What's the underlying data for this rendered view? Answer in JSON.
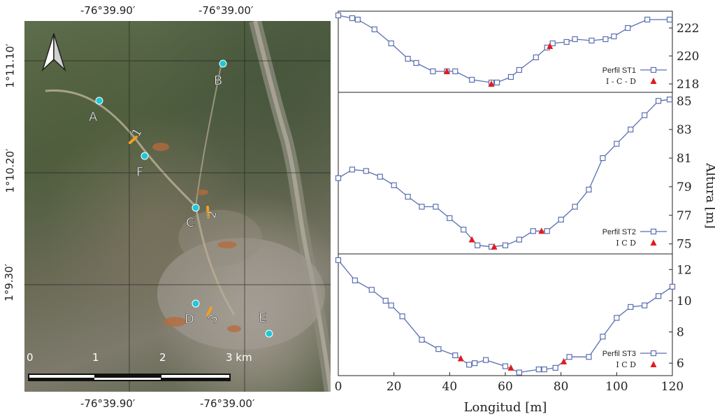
{
  "map": {
    "top_lon_labels": [
      "-76°39.90′",
      "-76°39.00′"
    ],
    "bottom_lon_labels": [
      "-76°39.90′",
      "-76°39.00′"
    ],
    "lat_labels": [
      "1°11.10′",
      "1°10.20′",
      "1°9.30′"
    ],
    "scale_labels": [
      "0",
      "1",
      "2",
      "3 km"
    ],
    "points": [
      "A",
      "B",
      "C",
      "D",
      "E",
      "F"
    ],
    "profiles": [
      "1",
      "2",
      "3"
    ],
    "colors": {
      "point": "#1ec8d8",
      "profile": "#f0a020"
    },
    "north_arrow_icon": "north-arrow-icon"
  },
  "chart_data": {
    "type": "line",
    "xlabel": "Longitud [m]",
    "ylabel": "Altura [m]",
    "x_ticks": [
      "0",
      "20",
      "40",
      "60",
      "80",
      "100",
      "120"
    ],
    "xlim": [
      0,
      120
    ],
    "colors": {
      "line": "#5a6fb0",
      "marker": "#e31a1c"
    },
    "panels": [
      {
        "ylim": [
          217.4,
          223.2
        ],
        "y_ticks": [
          "218",
          "220",
          "222"
        ],
        "legend": [
          "Perfil ST1",
          "I - C - D"
        ],
        "profile": [
          [
            0,
            222.9
          ],
          [
            5,
            222.7
          ],
          [
            7,
            222.6
          ],
          [
            13,
            221.9
          ],
          [
            19,
            220.9
          ],
          [
            25,
            219.8
          ],
          [
            28,
            219.5
          ],
          [
            34,
            218.9
          ],
          [
            39,
            218.9
          ],
          [
            42,
            218.9
          ],
          [
            48,
            218.3
          ],
          [
            55,
            218.1
          ],
          [
            57,
            218.1
          ],
          [
            62,
            218.5
          ],
          [
            65,
            219.0
          ],
          [
            71,
            219.9
          ],
          [
            75,
            220.6
          ],
          [
            77,
            220.9
          ],
          [
            82,
            221.0
          ],
          [
            85,
            221.2
          ],
          [
            91,
            221.1
          ],
          [
            96,
            221.2
          ],
          [
            99,
            221.4
          ],
          [
            104,
            222.0
          ],
          [
            111,
            222.6
          ],
          [
            119,
            222.6
          ]
        ],
        "markers": [
          [
            39,
            218.9
          ],
          [
            55,
            218.0
          ],
          [
            76,
            220.7
          ]
        ]
      },
      {
        "ylim": [
          74.3,
          85.6
        ],
        "y_ticks": [
          "75",
          "77",
          "79",
          "81",
          "83",
          "85"
        ],
        "legend": [
          "Perfil ST2",
          "I C D"
        ],
        "profile": [
          [
            0,
            79.6
          ],
          [
            5,
            80.2
          ],
          [
            10,
            80.1
          ],
          [
            15,
            79.7
          ],
          [
            20,
            79.1
          ],
          [
            25,
            78.3
          ],
          [
            30,
            77.6
          ],
          [
            35,
            77.6
          ],
          [
            40,
            76.8
          ],
          [
            45,
            76.0
          ],
          [
            50,
            74.9
          ],
          [
            55,
            74.8
          ],
          [
            60,
            74.9
          ],
          [
            65,
            75.3
          ],
          [
            70,
            75.9
          ],
          [
            75,
            75.9
          ],
          [
            80,
            76.7
          ],
          [
            85,
            77.6
          ],
          [
            90,
            78.8
          ],
          [
            95,
            81.0
          ],
          [
            100,
            82.0
          ],
          [
            105,
            83.0
          ],
          [
            110,
            84.0
          ],
          [
            115,
            85.0
          ],
          [
            119,
            85.1
          ]
        ],
        "markers": [
          [
            48,
            75.3
          ],
          [
            56,
            74.8
          ],
          [
            73,
            75.9
          ]
        ]
      },
      {
        "ylim": [
          5.2,
          13.0
        ],
        "y_ticks": [
          "6",
          "8",
          "10",
          "12"
        ],
        "legend": [
          "Perfil ST3",
          "I C D"
        ],
        "profile": [
          [
            0,
            12.6
          ],
          [
            6,
            11.3
          ],
          [
            12,
            10.7
          ],
          [
            17,
            10.0
          ],
          [
            19,
            9.7
          ],
          [
            23,
            9.0
          ],
          [
            30,
            7.5
          ],
          [
            36,
            6.9
          ],
          [
            42,
            6.5
          ],
          [
            47,
            5.9
          ],
          [
            49,
            6.0
          ],
          [
            53,
            6.2
          ],
          [
            60,
            5.8
          ],
          [
            65,
            5.4
          ],
          [
            72,
            5.6
          ],
          [
            74,
            5.6
          ],
          [
            78,
            5.7
          ],
          [
            83,
            6.4
          ],
          [
            90,
            6.4
          ],
          [
            95,
            7.7
          ],
          [
            100,
            8.9
          ],
          [
            105,
            9.6
          ],
          [
            110,
            9.7
          ],
          [
            115,
            10.3
          ],
          [
            120,
            10.9
          ]
        ],
        "markers": [
          [
            44,
            6.3
          ],
          [
            62,
            5.7
          ],
          [
            81,
            6.1
          ]
        ]
      }
    ]
  }
}
